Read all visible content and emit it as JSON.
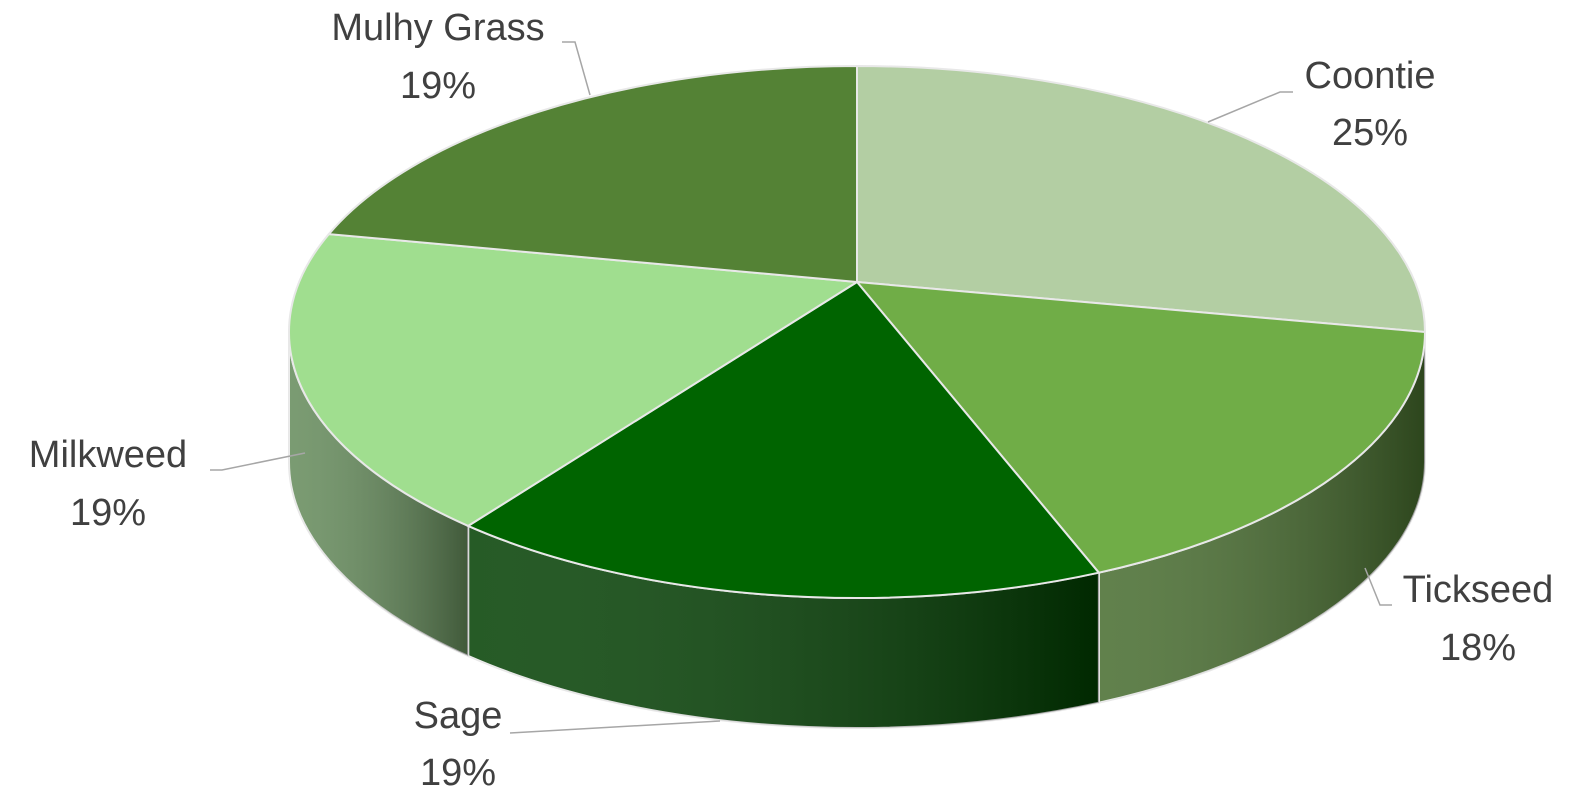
{
  "chart_data": {
    "type": "pie",
    "categories": [
      "Coontie",
      "Tickseed",
      "Sage",
      "Milkweed",
      "Mulhy Grass"
    ],
    "values": [
      25,
      18,
      19,
      19,
      19
    ],
    "value_labels": [
      "25%",
      "18%",
      "19%",
      "19%",
      "19%"
    ],
    "colors": [
      "#b3cea3",
      "#70ad47",
      "#006400",
      "#a0de8f",
      "#548235"
    ]
  }
}
